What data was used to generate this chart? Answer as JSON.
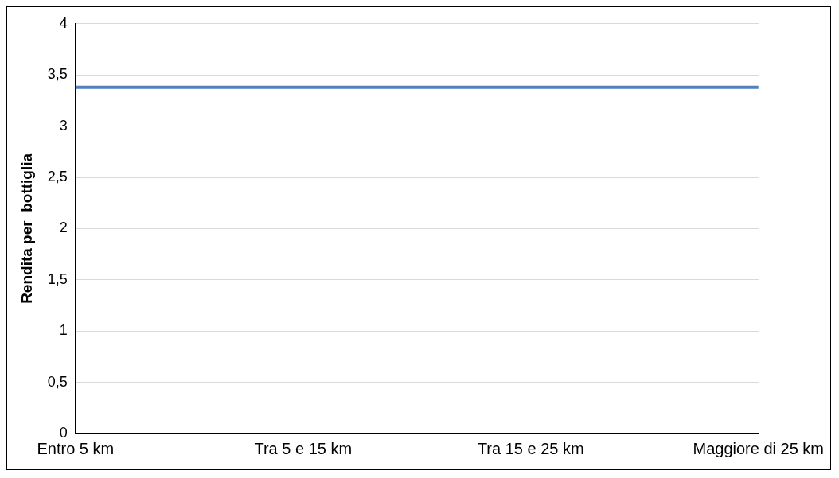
{
  "chart_data": {
    "type": "line",
    "ylabel": "Rendita per  bottiglia",
    "categories": [
      "Entro 5 km",
      "Tra 5 e 15 km",
      "Tra 15 e 25 km",
      "Maggiore di 25 km"
    ],
    "series": [
      {
        "color": "#4f81bd",
        "values": [
          3.38,
          3.38,
          3.38,
          3.38
        ]
      }
    ],
    "ylim": [
      0,
      4
    ],
    "yticks": [
      0,
      {
        "value": 0.5,
        "label": "0,5"
      },
      1,
      {
        "value": 1.5,
        "label": "1,5"
      },
      2,
      {
        "value": 2.5,
        "label": "2,5"
      },
      3,
      {
        "value": 3.5,
        "label": "3,5"
      },
      4
    ],
    "grid": "y",
    "legend": false
  }
}
